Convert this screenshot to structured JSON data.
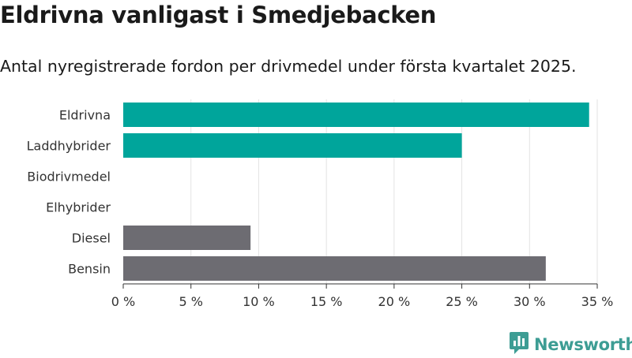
{
  "title": "Eldrivna vanligast i Smedjebacken",
  "subtitle": "Antal nyregistrerade fordon per drivmedel under första kvartalet 2025.",
  "brand": "Newsworthy",
  "colors": {
    "electric": "#00a59b",
    "fossil": "#6d6c72",
    "brand": "#3d9d94"
  },
  "chart_data": {
    "type": "bar",
    "orientation": "horizontal",
    "categories": [
      "Eldrivna",
      "Laddhybrider",
      "Biodrivmedel",
      "Elhybrider",
      "Diesel",
      "Bensin"
    ],
    "values": [
      34.4,
      25.0,
      0,
      0,
      9.4,
      31.2
    ],
    "bar_colors": [
      "#00a59b",
      "#00a59b",
      "#00a59b",
      "#00a59b",
      "#6d6c72",
      "#6d6c72"
    ],
    "xlim": [
      0,
      35
    ],
    "ticks": [
      0,
      5,
      10,
      15,
      20,
      25,
      30,
      35
    ],
    "tick_labels": [
      "0 %",
      "5 %",
      "10 %",
      "15 %",
      "20 %",
      "25 %",
      "30 %",
      "35 %"
    ],
    "grid": true,
    "legend": false
  }
}
